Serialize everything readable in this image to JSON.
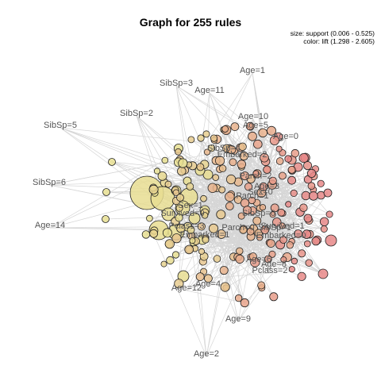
{
  "title": "Graph for 255 rules",
  "legend": {
    "size": "size: support (0.006 - 0.525)",
    "color": "color: lift (1.298 - 2.605)"
  },
  "colors": {
    "low_lift": "#e8df92",
    "high_lift": "#e88888",
    "edge": "#d6d6d6",
    "node_border": "#222222"
  },
  "item_labels": [
    "Age=1",
    "Age=11",
    "SibSp=3",
    "SibSp=2",
    "Age=10",
    "Age=5",
    "Age=0",
    "SibSp=5",
    "SibSp=4",
    "Embarked=2",
    "SibSp=6",
    "Age=14",
    "Parch=2",
    "Parch=1",
    "Sex=0",
    "Age=3",
    "Sex=1",
    "Survived=0",
    "SibSp=0",
    "Pclass=3",
    "Parch=0",
    "Embarked=1",
    "SibSp=1",
    "Survived=1",
    "Embarked=0",
    "Age=4",
    "Age=8",
    "Pclass=2",
    "Age=6",
    "Age=12",
    "Age=9",
    "Age=2"
  ]
}
